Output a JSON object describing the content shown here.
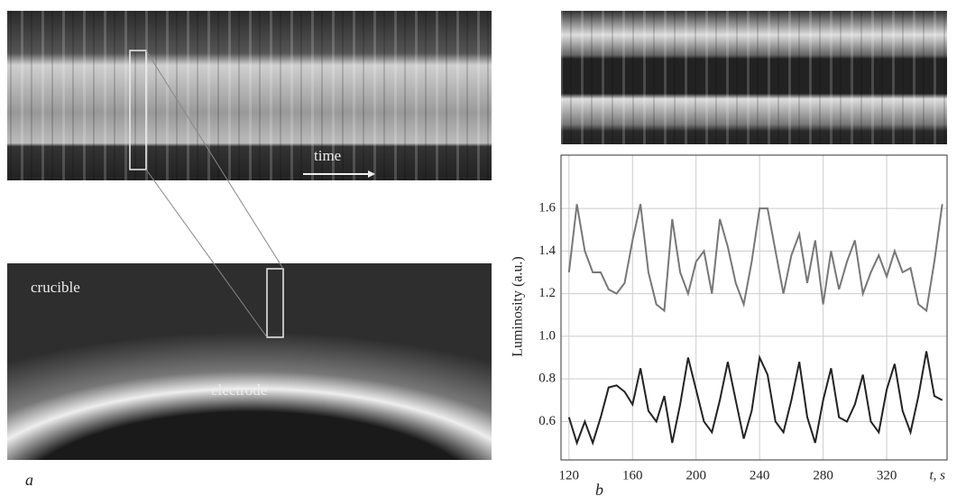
{
  "figure": {
    "panel_a": {
      "label": "a",
      "time": "time",
      "crucible": "crucible",
      "electrode": "electrode"
    },
    "panel_b": {
      "label": "b"
    }
  },
  "chart_data": {
    "type": "line",
    "ylabel": "Luminosity (a.u.)",
    "xlabel": "t, s",
    "x": [
      120,
      125,
      130,
      135,
      140,
      145,
      150,
      155,
      160,
      165,
      170,
      175,
      180,
      185,
      190,
      195,
      200,
      205,
      210,
      215,
      220,
      225,
      230,
      235,
      240,
      245,
      250,
      255,
      260,
      265,
      270,
      275,
      280,
      285,
      290,
      295,
      300,
      305,
      310,
      315,
      320,
      325,
      330,
      335,
      340,
      345,
      350,
      355
    ],
    "series": [
      {
        "color": "#777777",
        "values": [
          1.3,
          1.62,
          1.4,
          1.3,
          1.3,
          1.22,
          1.2,
          1.25,
          1.45,
          1.62,
          1.3,
          1.15,
          1.12,
          1.55,
          1.3,
          1.2,
          1.35,
          1.4,
          1.2,
          1.55,
          1.42,
          1.25,
          1.15,
          1.35,
          1.6,
          1.6,
          1.4,
          1.2,
          1.38,
          1.48,
          1.25,
          1.45,
          1.15,
          1.4,
          1.22,
          1.35,
          1.45,
          1.2,
          1.3,
          1.38,
          1.28,
          1.4,
          1.3,
          1.32,
          1.15,
          1.12,
          1.35,
          1.62
        ]
      },
      {
        "color": "#222222",
        "values": [
          0.62,
          0.5,
          0.6,
          0.5,
          0.62,
          0.76,
          0.77,
          0.74,
          0.68,
          0.85,
          0.65,
          0.6,
          0.72,
          0.5,
          0.68,
          0.9,
          0.75,
          0.6,
          0.55,
          0.7,
          0.88,
          0.7,
          0.52,
          0.65,
          0.9,
          0.82,
          0.6,
          0.55,
          0.7,
          0.88,
          0.62,
          0.5,
          0.7,
          0.85,
          0.62,
          0.6,
          0.68,
          0.82,
          0.6,
          0.55,
          0.75,
          0.87,
          0.65,
          0.55,
          0.72,
          0.93,
          0.72,
          0.7
        ]
      }
    ],
    "xlim": [
      115,
      358
    ],
    "xticks": [
      120,
      160,
      200,
      240,
      280,
      320
    ],
    "ylim": [
      0.42,
      1.85
    ],
    "yticks": [
      0.6,
      0.8,
      {
        "value": 1.0,
        "label": "1.0"
      },
      1.2,
      1.4,
      1.6
    ],
    "grid": true
  }
}
